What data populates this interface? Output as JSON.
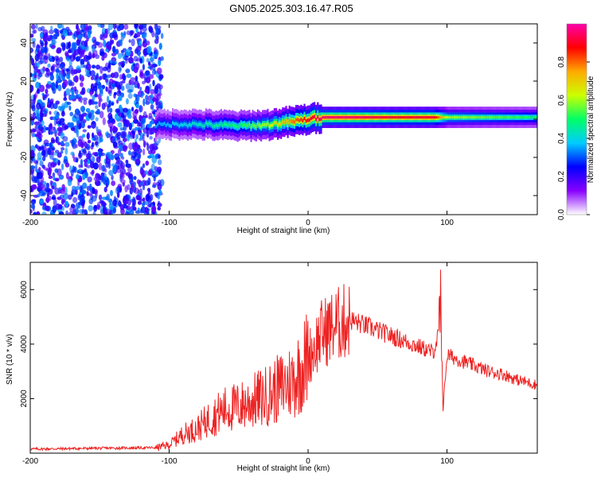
{
  "chart_data": [
    {
      "type": "heatmap",
      "title": "GN05.2025.303.16.47.R05",
      "xlabel": "Height of straight line (km)",
      "ylabel": "Frequency (Hz)",
      "xlim": [
        -200,
        165
      ],
      "ylim": [
        -50,
        50
      ],
      "x_ticks": [
        -200,
        -100,
        0,
        100
      ],
      "y_ticks": [
        40,
        20,
        0,
        -20,
        -40
      ],
      "colorbar": {
        "label": "Normalized spectral amplitude",
        "range": [
          0,
          1
        ],
        "ticks": [
          "0.0",
          "0.2",
          "0.4",
          "0.6",
          "0.8"
        ],
        "colors": [
          "#ffffff",
          "#8800ff",
          "#0000ff",
          "#00ccff",
          "#00ff66",
          "#ccff00",
          "#ffaa00",
          "#ff0000",
          "#ff00aa"
        ]
      },
      "noise_region_x": [
        -200,
        -105
      ],
      "ridge": {
        "x": [
          -110,
          -90,
          -70,
          -50,
          -30,
          -10,
          0,
          10,
          30,
          60,
          90,
          100,
          130,
          165
        ],
        "freq": [
          -3,
          -2.5,
          -3,
          -3.5,
          -3,
          -1,
          0,
          1,
          1,
          1,
          1,
          1,
          1,
          1
        ],
        "amplitude": [
          0.35,
          0.4,
          0.45,
          0.5,
          0.6,
          0.8,
          0.9,
          0.95,
          0.95,
          0.9,
          0.9,
          0.6,
          0.55,
          0.5
        ]
      }
    },
    {
      "type": "line",
      "xlabel": "Height of straight line (km)",
      "ylabel": "SNR (10 * v/v)",
      "xlim": [
        -200,
        165
      ],
      "ylim": [
        0,
        7000
      ],
      "x_ticks": [
        -200,
        -100,
        0,
        100
      ],
      "y_ticks": [
        2000,
        4000,
        6000
      ],
      "series": [
        {
          "name": "SNR",
          "color": "#ee2222",
          "x": [
            -200,
            -150,
            -110,
            -100,
            -90,
            -80,
            -70,
            -60,
            -50,
            -40,
            -30,
            -20,
            -10,
            0,
            10,
            20,
            30,
            40,
            50,
            60,
            70,
            80,
            90,
            95,
            97,
            100,
            110,
            120,
            130,
            140,
            150,
            165
          ],
          "y": [
            150,
            180,
            200,
            300,
            700,
            900,
            1300,
            1600,
            1700,
            1900,
            2100,
            2400,
            2700,
            3500,
            4400,
            4700,
            4900,
            4700,
            4500,
            4300,
            4100,
            3900,
            3700,
            4500,
            1500,
            3600,
            3400,
            3200,
            3000,
            2900,
            2700,
            2500
          ]
        }
      ]
    }
  ]
}
